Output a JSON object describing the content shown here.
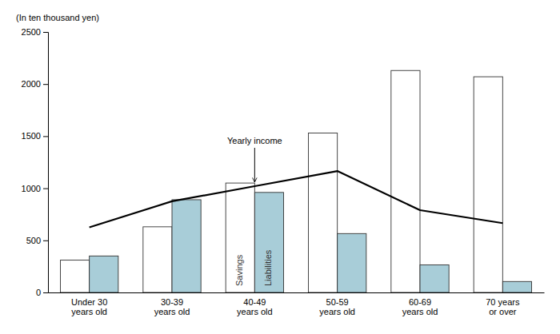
{
  "chart_data": {
    "type": "bar",
    "categories": [
      "Under 30\nyears old",
      "30-39\nyears old",
      "40-49\nyears old",
      "50-59\nyears old",
      "60-69\nyears old",
      "70 years\nor over"
    ],
    "series": [
      {
        "name": "Savings",
        "color": "#ffffff",
        "values": [
          310,
          630,
          1050,
          1530,
          2130,
          2070
        ]
      },
      {
        "name": "Liabilities",
        "color": "#a8cdd8",
        "values": [
          350,
          890,
          960,
          565,
          265,
          105
        ]
      },
      {
        "name": "Yearly income",
        "type": "line",
        "color": "#000000",
        "values": [
          625,
          875,
          1020,
          1165,
          790,
          665
        ]
      }
    ],
    "ylabel": "(In ten thousand yen)",
    "ylim": [
      0,
      2500
    ],
    "yticks": [
      0,
      500,
      1000,
      1500,
      2000,
      2500
    ],
    "grid": false
  }
}
